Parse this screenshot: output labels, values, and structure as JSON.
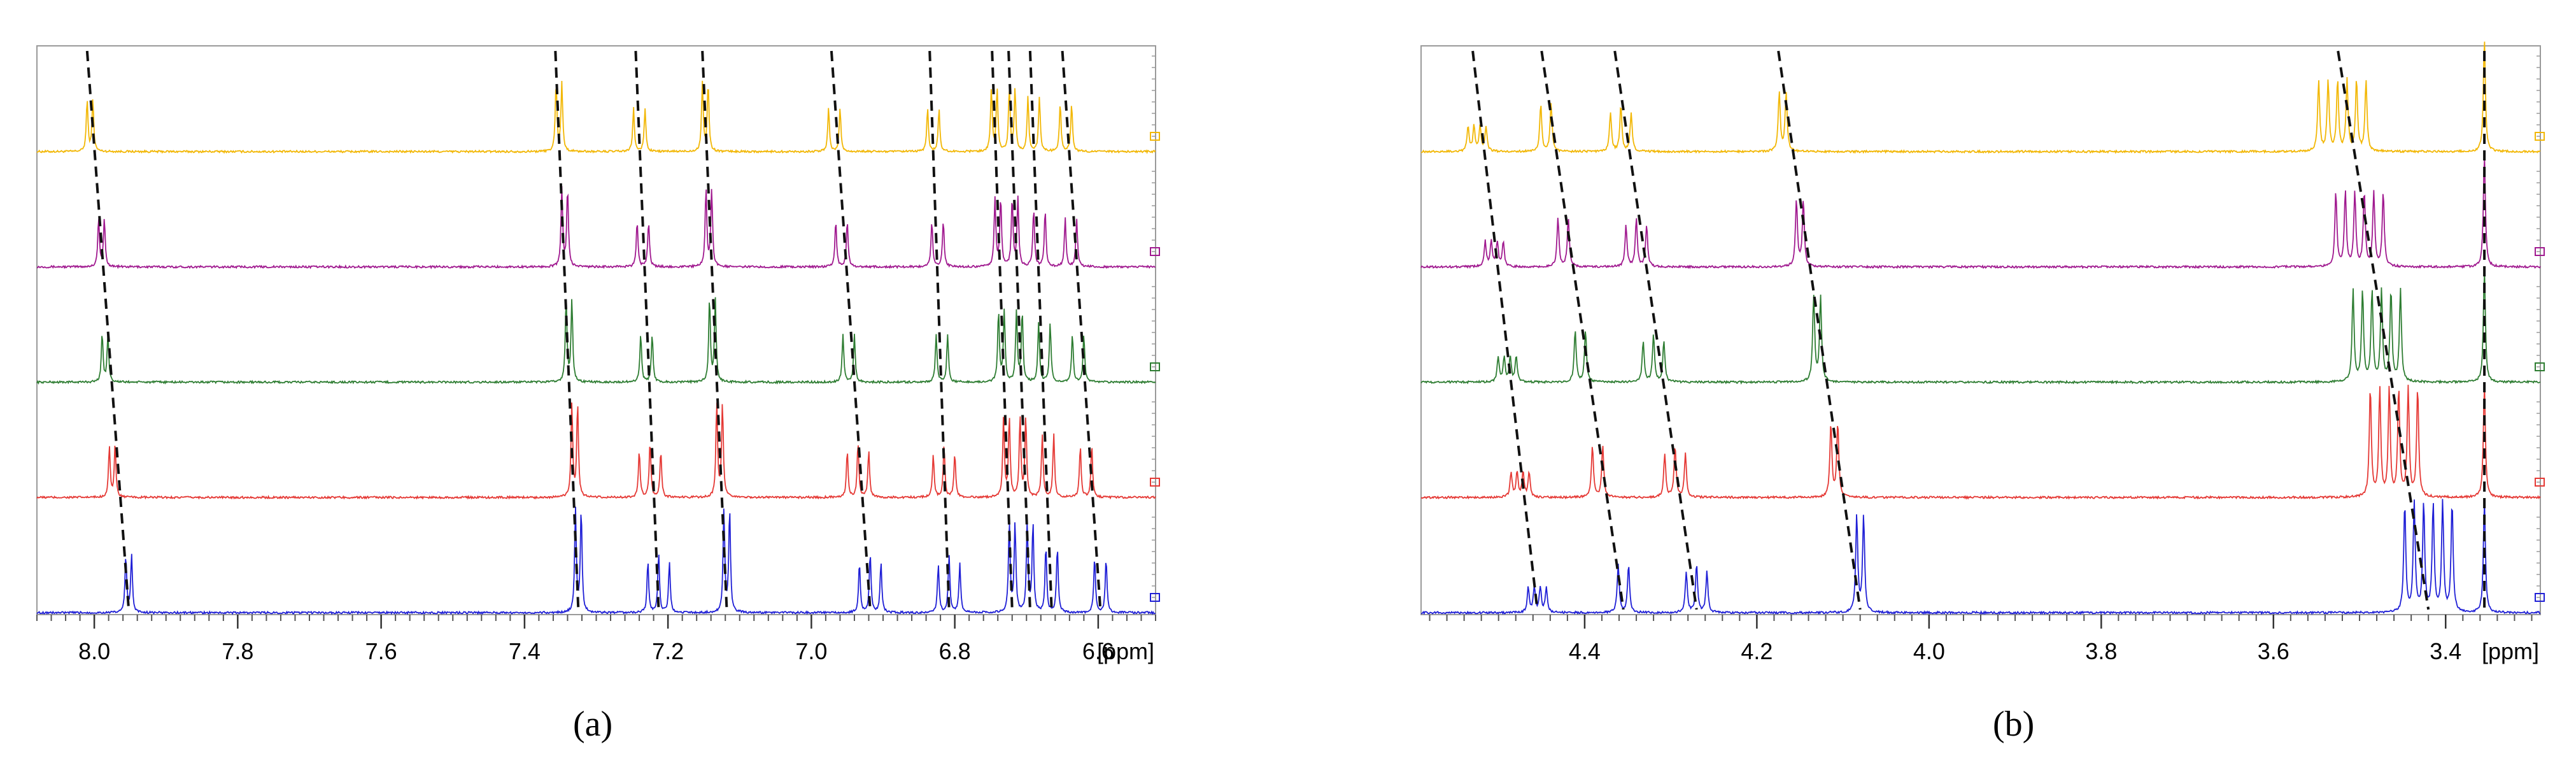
{
  "chart_data": [
    {
      "type": "line",
      "panel_label": "(a)",
      "unit_label": "[ppm]",
      "xlim": [
        8.08,
        6.52
      ],
      "x_reversed": true,
      "x_ticks": [
        8.0,
        7.8,
        7.6,
        7.4,
        7.2,
        7.0,
        6.8,
        6.6
      ],
      "x_tick_labels": [
        "8.0",
        "7.8",
        "7.6",
        "7.4",
        "7.2",
        "7.0",
        "6.8",
        "6.6"
      ],
      "grid": false,
      "stacked": true,
      "series": [
        {
          "color": "#f2b705",
          "peaks": [
            {
              "ppm": 8.006,
              "n": 2,
              "j": 0.008,
              "h": 0.45
            },
            {
              "ppm": 7.352,
              "n": 2,
              "j": 0.008,
              "h": 0.6
            },
            {
              "ppm": 7.24,
              "n": 2,
              "j": 0.016,
              "h": 0.38
            },
            {
              "ppm": 7.148,
              "n": 2,
              "j": 0.008,
              "h": 0.6
            },
            {
              "ppm": 6.968,
              "n": 2,
              "j": 0.016,
              "h": 0.38
            },
            {
              "ppm": 6.83,
              "n": 2,
              "j": 0.016,
              "h": 0.38
            },
            {
              "ppm": 6.745,
              "n": 2,
              "j": 0.008,
              "h": 0.55
            },
            {
              "ppm": 6.72,
              "n": 2,
              "j": 0.008,
              "h": 0.55
            },
            {
              "ppm": 6.69,
              "n": 2,
              "j": 0.016,
              "h": 0.48
            },
            {
              "ppm": 6.645,
              "n": 2,
              "j": 0.016,
              "h": 0.42
            }
          ]
        },
        {
          "color": "#a0198f",
          "peaks": [
            {
              "ppm": 7.99,
              "n": 2,
              "j": 0.008,
              "h": 0.42
            },
            {
              "ppm": 7.344,
              "n": 2,
              "j": 0.008,
              "h": 0.68
            },
            {
              "ppm": 7.235,
              "n": 2,
              "j": 0.016,
              "h": 0.4
            },
            {
              "ppm": 7.143,
              "n": 2,
              "j": 0.008,
              "h": 0.68
            },
            {
              "ppm": 6.958,
              "n": 2,
              "j": 0.016,
              "h": 0.4
            },
            {
              "ppm": 6.824,
              "n": 2,
              "j": 0.016,
              "h": 0.4
            },
            {
              "ppm": 6.74,
              "n": 2,
              "j": 0.008,
              "h": 0.6
            },
            {
              "ppm": 6.716,
              "n": 2,
              "j": 0.008,
              "h": 0.6
            },
            {
              "ppm": 6.682,
              "n": 2,
              "j": 0.016,
              "h": 0.5
            },
            {
              "ppm": 6.638,
              "n": 2,
              "j": 0.016,
              "h": 0.42
            }
          ]
        },
        {
          "color": "#2e7d32",
          "peaks": [
            {
              "ppm": 7.985,
              "n": 2,
              "j": 0.008,
              "h": 0.42
            },
            {
              "ppm": 7.338,
              "n": 2,
              "j": 0.008,
              "h": 0.72
            },
            {
              "ppm": 7.23,
              "n": 2,
              "j": 0.016,
              "h": 0.42
            },
            {
              "ppm": 7.138,
              "n": 2,
              "j": 0.008,
              "h": 0.72
            },
            {
              "ppm": 6.948,
              "n": 2,
              "j": 0.016,
              "h": 0.42
            },
            {
              "ppm": 6.818,
              "n": 2,
              "j": 0.016,
              "h": 0.42
            },
            {
              "ppm": 6.735,
              "n": 2,
              "j": 0.008,
              "h": 0.62
            },
            {
              "ppm": 6.71,
              "n": 2,
              "j": 0.008,
              "h": 0.62
            },
            {
              "ppm": 6.675,
              "n": 2,
              "j": 0.016,
              "h": 0.52
            },
            {
              "ppm": 6.628,
              "n": 2,
              "j": 0.016,
              "h": 0.42
            }
          ]
        },
        {
          "color": "#e53935",
          "peaks": [
            {
              "ppm": 7.975,
              "n": 2,
              "j": 0.008,
              "h": 0.45
            },
            {
              "ppm": 7.33,
              "n": 2,
              "j": 0.008,
              "h": 0.82
            },
            {
              "ppm": 7.225,
              "n": 3,
              "j": 0.015,
              "h": 0.48
            },
            {
              "ppm": 7.128,
              "n": 2,
              "j": 0.008,
              "h": 0.82
            },
            {
              "ppm": 6.935,
              "n": 3,
              "j": 0.015,
              "h": 0.48
            },
            {
              "ppm": 6.815,
              "n": 3,
              "j": 0.015,
              "h": 0.45
            },
            {
              "ppm": 6.728,
              "n": 2,
              "j": 0.008,
              "h": 0.7
            },
            {
              "ppm": 6.705,
              "n": 2,
              "j": 0.008,
              "h": 0.7
            },
            {
              "ppm": 6.67,
              "n": 2,
              "j": 0.016,
              "h": 0.55
            },
            {
              "ppm": 6.617,
              "n": 2,
              "j": 0.016,
              "h": 0.45
            }
          ]
        },
        {
          "color": "#1f1fd6",
          "peaks": [
            {
              "ppm": 7.952,
              "n": 2,
              "j": 0.008,
              "h": 0.5
            },
            {
              "ppm": 7.325,
              "n": 2,
              "j": 0.008,
              "h": 0.9
            },
            {
              "ppm": 7.213,
              "n": 3,
              "j": 0.015,
              "h": 0.52
            },
            {
              "ppm": 7.118,
              "n": 2,
              "j": 0.008,
              "h": 0.9
            },
            {
              "ppm": 6.918,
              "n": 3,
              "j": 0.015,
              "h": 0.52
            },
            {
              "ppm": 6.808,
              "n": 3,
              "j": 0.015,
              "h": 0.5
            },
            {
              "ppm": 6.72,
              "n": 2,
              "j": 0.008,
              "h": 0.78
            },
            {
              "ppm": 6.695,
              "n": 2,
              "j": 0.008,
              "h": 0.78
            },
            {
              "ppm": 6.665,
              "n": 2,
              "j": 0.016,
              "h": 0.58
            },
            {
              "ppm": 6.597,
              "n": 2,
              "j": 0.016,
              "h": 0.48
            }
          ]
        }
      ],
      "trend_lines": [
        [
          8.01,
          7.952
        ],
        [
          7.357,
          7.325
        ],
        [
          7.245,
          7.213
        ],
        [
          7.152,
          7.118
        ],
        [
          6.972,
          6.918
        ],
        [
          6.835,
          6.808
        ],
        [
          6.748,
          6.72
        ],
        [
          6.725,
          6.695
        ],
        [
          6.695,
          6.665
        ],
        [
          6.65,
          6.597
        ]
      ]
    },
    {
      "type": "line",
      "panel_label": "(b)",
      "unit_label": "[ppm]",
      "xlim": [
        4.59,
        3.29
      ],
      "x_reversed": true,
      "x_ticks": [
        4.4,
        4.2,
        4.0,
        3.8,
        3.6,
        3.4
      ],
      "x_tick_labels": [
        "4.4",
        "4.2",
        "4.0",
        "3.8",
        "3.6",
        "3.4"
      ],
      "grid": false,
      "stacked": true,
      "series": [
        {
          "color": "#f2b705",
          "peaks": [
            {
              "ppm": 4.525,
              "n": 4,
              "j": 0.007,
              "h": 0.22
            },
            {
              "ppm": 4.445,
              "n": 2,
              "j": 0.012,
              "h": 0.42
            },
            {
              "ppm": 4.358,
              "n": 3,
              "j": 0.012,
              "h": 0.4
            },
            {
              "ppm": 4.17,
              "n": 2,
              "j": 0.008,
              "h": 0.52
            },
            {
              "ppm": 3.52,
              "n": 6,
              "j": 0.011,
              "h": 0.62
            },
            {
              "ppm": 3.355,
              "n": 1,
              "j": 0,
              "h": 0.98
            }
          ]
        },
        {
          "color": "#a0198f",
          "peaks": [
            {
              "ppm": 4.505,
              "n": 4,
              "j": 0.007,
              "h": 0.22
            },
            {
              "ppm": 4.425,
              "n": 2,
              "j": 0.012,
              "h": 0.42
            },
            {
              "ppm": 4.34,
              "n": 3,
              "j": 0.012,
              "h": 0.42
            },
            {
              "ppm": 4.15,
              "n": 2,
              "j": 0.008,
              "h": 0.58
            },
            {
              "ppm": 3.5,
              "n": 6,
              "j": 0.011,
              "h": 0.65
            },
            {
              "ppm": 3.355,
              "n": 1,
              "j": 0,
              "h": 0.98
            }
          ]
        },
        {
          "color": "#2e7d32",
          "peaks": [
            {
              "ppm": 4.49,
              "n": 4,
              "j": 0.007,
              "h": 0.22
            },
            {
              "ppm": 4.405,
              "n": 2,
              "j": 0.012,
              "h": 0.45
            },
            {
              "ppm": 4.32,
              "n": 3,
              "j": 0.012,
              "h": 0.42
            },
            {
              "ppm": 4.13,
              "n": 2,
              "j": 0.008,
              "h": 0.75
            },
            {
              "ppm": 3.48,
              "n": 6,
              "j": 0.011,
              "h": 0.8
            },
            {
              "ppm": 3.355,
              "n": 1,
              "j": 0,
              "h": 0.98
            }
          ]
        },
        {
          "color": "#e53935",
          "peaks": [
            {
              "ppm": 4.475,
              "n": 4,
              "j": 0.007,
              "h": 0.22
            },
            {
              "ppm": 4.385,
              "n": 2,
              "j": 0.012,
              "h": 0.45
            },
            {
              "ppm": 4.295,
              "n": 3,
              "j": 0.012,
              "h": 0.45
            },
            {
              "ppm": 4.11,
              "n": 2,
              "j": 0.008,
              "h": 0.65
            },
            {
              "ppm": 3.46,
              "n": 6,
              "j": 0.011,
              "h": 0.95
            },
            {
              "ppm": 3.355,
              "n": 1,
              "j": 0,
              "h": 0.98
            }
          ]
        },
        {
          "color": "#1f1fd6",
          "peaks": [
            {
              "ppm": 4.455,
              "n": 4,
              "j": 0.007,
              "h": 0.22
            },
            {
              "ppm": 4.355,
              "n": 2,
              "j": 0.012,
              "h": 0.42
            },
            {
              "ppm": 4.27,
              "n": 3,
              "j": 0.012,
              "h": 0.42
            },
            {
              "ppm": 4.08,
              "n": 2,
              "j": 0.008,
              "h": 0.85
            },
            {
              "ppm": 3.42,
              "n": 6,
              "j": 0.011,
              "h": 0.95
            },
            {
              "ppm": 3.355,
              "n": 1,
              "j": 0,
              "h": 0.98
            }
          ]
        }
      ],
      "trend_lines": [
        [
          4.53,
          4.455
        ],
        [
          4.45,
          4.355
        ],
        [
          4.365,
          4.27
        ],
        [
          4.175,
          4.08
        ],
        [
          3.525,
          3.42
        ],
        [
          3.355,
          3.355
        ]
      ]
    }
  ]
}
